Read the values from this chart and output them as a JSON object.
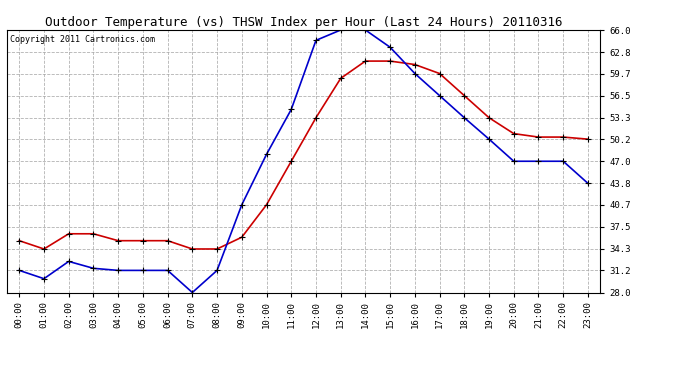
{
  "title": "Outdoor Temperature (vs) THSW Index per Hour (Last 24 Hours) 20110316",
  "copyright": "Copyright 2011 Cartronics.com",
  "hours": [
    "00:00",
    "01:00",
    "02:00",
    "03:00",
    "04:00",
    "05:00",
    "06:00",
    "07:00",
    "08:00",
    "09:00",
    "10:00",
    "11:00",
    "12:00",
    "13:00",
    "14:00",
    "15:00",
    "16:00",
    "17:00",
    "18:00",
    "19:00",
    "20:00",
    "21:00",
    "22:00",
    "23:00"
  ],
  "temp_red": [
    35.5,
    34.3,
    36.5,
    36.5,
    35.5,
    35.5,
    35.5,
    34.3,
    34.3,
    36.0,
    40.7,
    47.0,
    53.3,
    59.0,
    61.5,
    61.5,
    61.0,
    59.7,
    56.5,
    53.3,
    51.0,
    50.5,
    50.5,
    50.2
  ],
  "thsw_blue": [
    31.2,
    30.0,
    32.5,
    31.5,
    31.2,
    31.2,
    31.2,
    28.0,
    31.2,
    40.7,
    48.0,
    54.5,
    64.5,
    66.0,
    66.0,
    63.5,
    59.7,
    56.5,
    53.3,
    50.2,
    47.0,
    47.0,
    47.0,
    43.8
  ],
  "red_color": "#cc0000",
  "blue_color": "#0000cc",
  "marker": "+",
  "markersize": 4,
  "linewidth": 1.2,
  "ylim_min": 28.0,
  "ylim_max": 66.0,
  "yticks": [
    28.0,
    31.2,
    34.3,
    37.5,
    40.7,
    43.8,
    47.0,
    50.2,
    53.3,
    56.5,
    59.7,
    62.8,
    66.0
  ],
  "grid_color": "#aaaaaa",
  "grid_style": "--",
  "bg_color": "#ffffff",
  "plot_bg_color": "#ffffff",
  "title_fontsize": 9,
  "copyright_fontsize": 6,
  "tick_fontsize": 6.5,
  "title_color": "#000000"
}
